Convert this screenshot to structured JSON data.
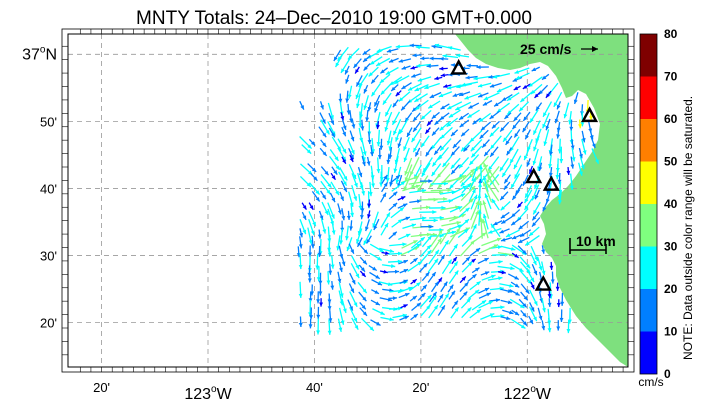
{
  "title": "MNTY Totals: 24–Dec–2010 19:00 GMT+0.000",
  "lat_labels": [
    {
      "text": "37",
      "deg": "o",
      "suffix": "N",
      "lat": 37.0
    },
    {
      "text": "50'",
      "lat": 36.8333
    },
    {
      "text": "40'",
      "lat": 36.6667
    },
    {
      "text": "30'",
      "lat": 36.5
    },
    {
      "text": "20'",
      "lat": 36.3333
    }
  ],
  "lon_labels": [
    {
      "text": "20'",
      "lon": -123.3333
    },
    {
      "text": "123",
      "deg": "o",
      "suffix": "W",
      "lon": -123.0
    },
    {
      "text": "40'",
      "lon": -122.6667
    },
    {
      "text": "20'",
      "lon": -122.3333
    },
    {
      "text": "122",
      "deg": "o",
      "suffix": "W",
      "lon": -122.0
    }
  ],
  "reference_vector": {
    "label": "25 cm/s",
    "speed_cm_s": 25
  },
  "scale_bar": {
    "label": "10 km",
    "length_km": 10
  },
  "colorbar": {
    "ticks": [
      "0",
      "10",
      "20",
      "30",
      "40",
      "50",
      "60",
      "70",
      "80"
    ],
    "unit": "cm/s",
    "colors": [
      "#0000ff",
      "#007fff",
      "#00ffff",
      "#7fff7f",
      "#ffff00",
      "#ff7f00",
      "#ff0000",
      "#7f0000"
    ]
  },
  "note": "NOTE: Data outside color range will be saturated.",
  "colors": {
    "land": "#7ee07e",
    "background": "#ffffff",
    "grid": "#999999"
  },
  "stations": [
    {
      "name": "station-1",
      "lon": -122.215,
      "lat": 36.965
    },
    {
      "name": "station-2",
      "lon": -121.805,
      "lat": 36.847
    },
    {
      "name": "station-3",
      "lon": -121.98,
      "lat": 36.695
    },
    {
      "name": "station-4",
      "lon": -121.925,
      "lat": 36.676
    },
    {
      "name": "station-5",
      "lon": -121.95,
      "lat": 36.428
    }
  ]
}
